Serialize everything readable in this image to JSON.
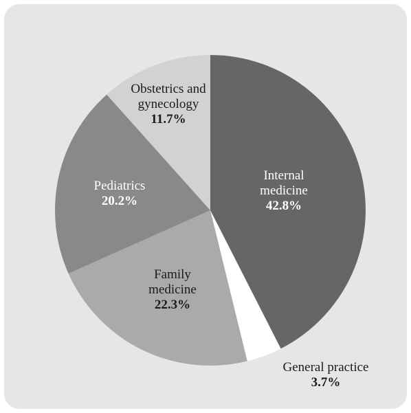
{
  "chart_data": {
    "type": "pie",
    "categories": [
      "Internal medicine",
      "General practice",
      "Family medicine",
      "Pediatrics",
      "Obstetrics and gynecology"
    ],
    "values": [
      42.8,
      3.7,
      22.3,
      20.2,
      11.7
    ],
    "value_labels": [
      "42.8%",
      "3.7%",
      "22.3%",
      "20.2%",
      "11.7%"
    ],
    "colors": [
      "#666666",
      "#ffffff",
      "#aaaaaa",
      "#898989",
      "#d2d2d2"
    ]
  }
}
